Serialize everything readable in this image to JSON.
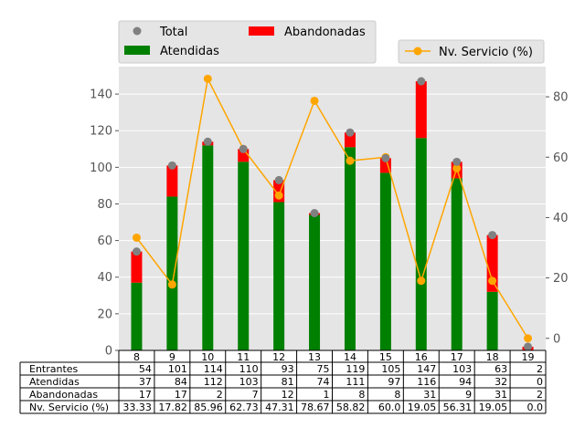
{
  "chart_data": {
    "type": "bar",
    "stacked": true,
    "categories": [
      "8",
      "9",
      "10",
      "11",
      "12",
      "13",
      "14",
      "15",
      "16",
      "17",
      "18",
      "19"
    ],
    "series": [
      {
        "name": "Atendidas",
        "type": "bar",
        "axis": "left",
        "color": "#008000",
        "values": [
          37,
          84,
          112,
          103,
          81,
          74,
          111,
          97,
          116,
          94,
          32,
          0
        ]
      },
      {
        "name": "Abandonadas",
        "type": "bar",
        "axis": "left",
        "color": "#ff0000",
        "values": [
          17,
          17,
          2,
          7,
          12,
          1,
          8,
          8,
          31,
          9,
          31,
          2
        ]
      },
      {
        "name": "Total",
        "type": "scatter",
        "axis": "left",
        "color": "#808080",
        "values": [
          54,
          101,
          114,
          110,
          93,
          75,
          119,
          105,
          147,
          103,
          63,
          2
        ]
      },
      {
        "name": "Nv. Servicio (%)",
        "type": "line",
        "axis": "right",
        "color": "#ffa500",
        "values": [
          33.33,
          17.82,
          85.96,
          62.73,
          47.31,
          78.67,
          58.82,
          60.0,
          19.05,
          56.31,
          19.05,
          0.0
        ]
      }
    ],
    "ylim_left": [
      0,
      155
    ],
    "yticks_left": [
      0,
      20,
      40,
      60,
      80,
      100,
      120,
      140
    ],
    "ylim_right": [
      -4,
      90
    ],
    "yticks_right": [
      0,
      20,
      40,
      60,
      80
    ],
    "grid": true,
    "background": "#e5e5e5",
    "legend_left_position": "top-left, above plot",
    "legend_right_position": "top-right, above plot",
    "table": {
      "rows": [
        {
          "label": "Entrantes",
          "values": [
            "54",
            "101",
            "114",
            "110",
            "93",
            "75",
            "119",
            "105",
            "147",
            "103",
            "63",
            "2"
          ]
        },
        {
          "label": "Atendidas",
          "values": [
            "37",
            "84",
            "112",
            "103",
            "81",
            "74",
            "111",
            "97",
            "116",
            "94",
            "32",
            "0"
          ]
        },
        {
          "label": "Abandonadas",
          "values": [
            "17",
            "17",
            "2",
            "7",
            "12",
            "1",
            "8",
            "8",
            "31",
            "9",
            "31",
            "2"
          ]
        },
        {
          "label": "Nv. Servicio (%)",
          "values": [
            "33.33",
            "17.82",
            "85.96",
            "62.73",
            "47.31",
            "78.67",
            "58.82",
            "60.0",
            "19.05",
            "56.31",
            "19.05",
            "0.0"
          ]
        }
      ]
    }
  }
}
